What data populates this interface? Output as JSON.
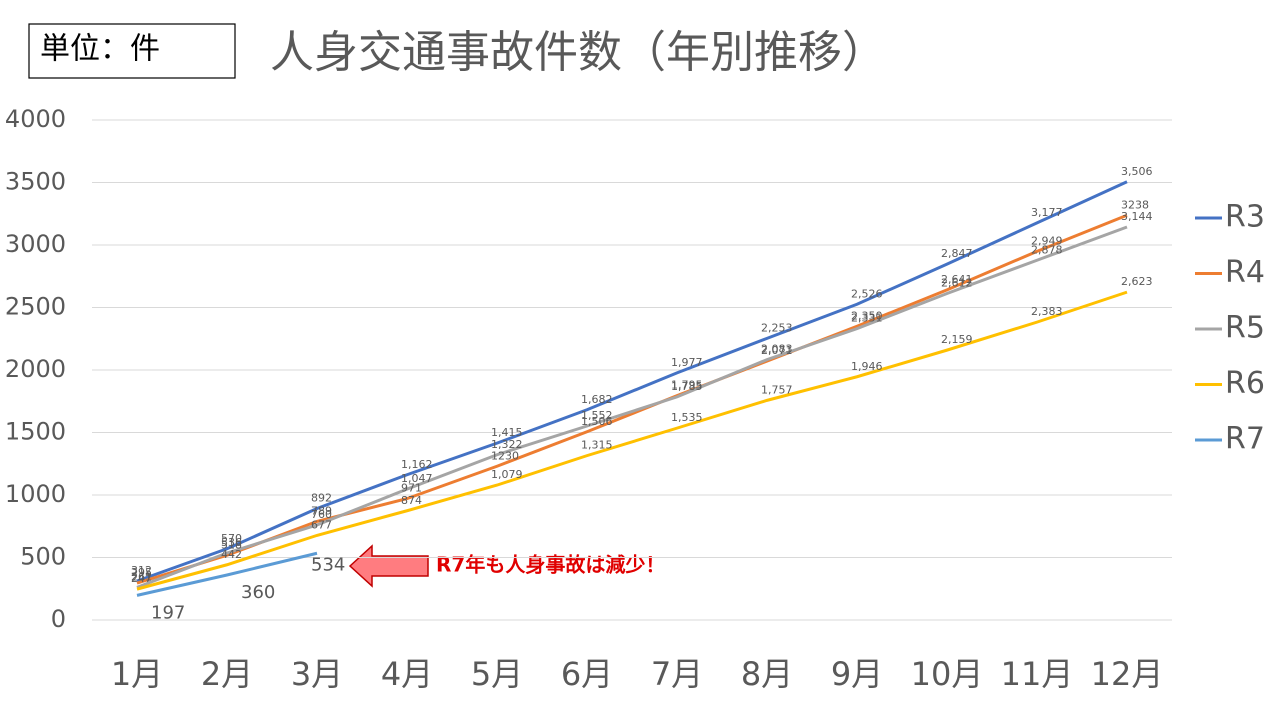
{
  "chart_data": {
    "type": "line",
    "title": "人身交通事故件数（年別推移）",
    "unit_label": "単位：件",
    "annotation": "R7年も人身事故は減少！",
    "categories": [
      "1月",
      "2月",
      "3月",
      "4月",
      "5月",
      "6月",
      "7月",
      "8月",
      "9月",
      "10月",
      "11月",
      "12月"
    ],
    "ylim": [
      0,
      4000
    ],
    "yticks": [
      0,
      500,
      1000,
      1500,
      2000,
      2500,
      3000,
      3500,
      4000
    ],
    "grid": true,
    "legend": "right",
    "series": [
      {
        "name": "R3",
        "color": "#4472c4",
        "values": [
          312,
          570,
          892,
          1162,
          1415,
          1682,
          1977,
          2253,
          2526,
          2847,
          3177,
          3506
        ],
        "value_labels": [
          "312",
          "570",
          "892",
          "1,162",
          "1,415",
          "1,682",
          "1,977",
          "2,253",
          "2,526",
          "2,847",
          "3,177",
          "3,506"
        ]
      },
      {
        "name": "R4",
        "color": "#ed7d31",
        "values": [
          295,
          518,
          789,
          971,
          1230,
          1506,
          1795,
          2071,
          2350,
          2641,
          2949,
          3238
        ],
        "value_labels": [
          "295",
          "518",
          "789",
          "971",
          "1230",
          "1,506",
          "1,795",
          "2,071",
          "2,350",
          "2,641",
          "2,949",
          "3238"
        ]
      },
      {
        "name": "R5",
        "color": "#a5a5a5",
        "values": [
          261,
          536,
          760,
          1047,
          1322,
          1552,
          1785,
          2083,
          2331,
          2612,
          2878,
          3144
        ],
        "value_labels": [
          "261",
          "536",
          "760",
          "1,047",
          "1,322",
          "1,552",
          "1,785",
          "2,083",
          "2,331",
          "2,612",
          "2,878",
          "3,144"
        ]
      },
      {
        "name": "R6",
        "color": "#ffc000",
        "values": [
          247,
          442,
          677,
          874,
          1079,
          1315,
          1535,
          1757,
          1946,
          2159,
          2383,
          2623
        ],
        "value_labels": [
          "247",
          "442",
          "677",
          "874",
          "1,079",
          "1,315",
          "1,535",
          "1,757",
          "1,946",
          "2,159",
          "2,383",
          "2,623"
        ]
      },
      {
        "name": "R7",
        "color": "#5b9bd5",
        "values": [
          197,
          360,
          534,
          null,
          null,
          null,
          null,
          null,
          null,
          null,
          null,
          null
        ],
        "value_labels": [
          "197",
          "360",
          "534",
          null,
          null,
          null,
          null,
          null,
          null,
          null,
          null,
          null
        ]
      }
    ]
  }
}
